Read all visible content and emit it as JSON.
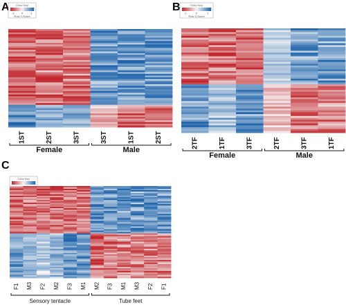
{
  "chart_data": [
    {
      "type": "heatmap",
      "panel_label": "A",
      "color_key": {
        "title": "Color Key",
        "subtitle": "Row Z-Score",
        "ticks": [
          "-1",
          "0",
          "1"
        ],
        "low_color": "#c1272d",
        "mid_color": "#f7f7f7",
        "high_color": "#2166ac"
      },
      "columns": [
        "1ST",
        "2ST",
        "3ST",
        "3ST",
        "1ST",
        "2ST"
      ],
      "groups": [
        {
          "name": "Female",
          "columns": 3
        },
        {
          "name": "Male",
          "columns": 3
        }
      ],
      "blocks": [
        {
          "rows": 44,
          "z": [
            -1,
            -1,
            -1,
            1,
            1,
            1
          ]
        },
        {
          "rows": 13,
          "z": [
            1,
            0.6,
            0.6,
            -0.4,
            -0.9,
            -0.9
          ]
        }
      ]
    },
    {
      "type": "heatmap",
      "panel_label": "B",
      "color_key": {
        "title": "Color Key",
        "subtitle": "Row Z-Score",
        "ticks": [
          "-1",
          "0",
          "1"
        ],
        "low_color": "#c1272d",
        "mid_color": "#f7f7f7",
        "high_color": "#2166ac"
      },
      "columns": [
        "2TF",
        "1TF",
        "3TF",
        "2TF",
        "3TF",
        "1TF"
      ],
      "groups": [
        {
          "name": "Female",
          "columns": 3
        },
        {
          "name": "Male",
          "columns": 3
        }
      ],
      "blocks": [
        {
          "rows": 30,
          "z": [
            -1,
            -1,
            -1,
            0.4,
            1,
            1
          ]
        },
        {
          "rows": 26,
          "z": [
            1,
            0.6,
            1,
            -0.4,
            -0.9,
            -0.8
          ]
        }
      ]
    },
    {
      "type": "heatmap",
      "panel_label": "C",
      "color_key": {
        "title": "Color Key",
        "subtitle": "Row Z-Score",
        "ticks": [
          "-1",
          "0",
          "1"
        ],
        "low_color": "#c1272d",
        "mid_color": "#f7f7f7",
        "high_color": "#2166ac"
      },
      "columns": [
        "F1",
        "M3",
        "F2",
        "M2",
        "F3",
        "M1",
        "M2",
        "F3",
        "M1",
        "M3",
        "F2",
        "F1"
      ],
      "groups": [
        {
          "name": "Sensory tentacle",
          "columns": 6
        },
        {
          "name": "Tube feet",
          "columns": 6
        }
      ],
      "blocks": [
        {
          "rows": 34,
          "z": [
            -1,
            -1,
            -1,
            -1,
            -1,
            -1,
            1,
            1,
            1,
            1,
            1,
            1
          ]
        },
        {
          "rows": 32,
          "z": [
            0.8,
            0.6,
            0.4,
            0.6,
            1,
            0.9,
            -1,
            -0.9,
            -0.8,
            -0.8,
            -0.9,
            -0.8
          ]
        }
      ]
    }
  ]
}
